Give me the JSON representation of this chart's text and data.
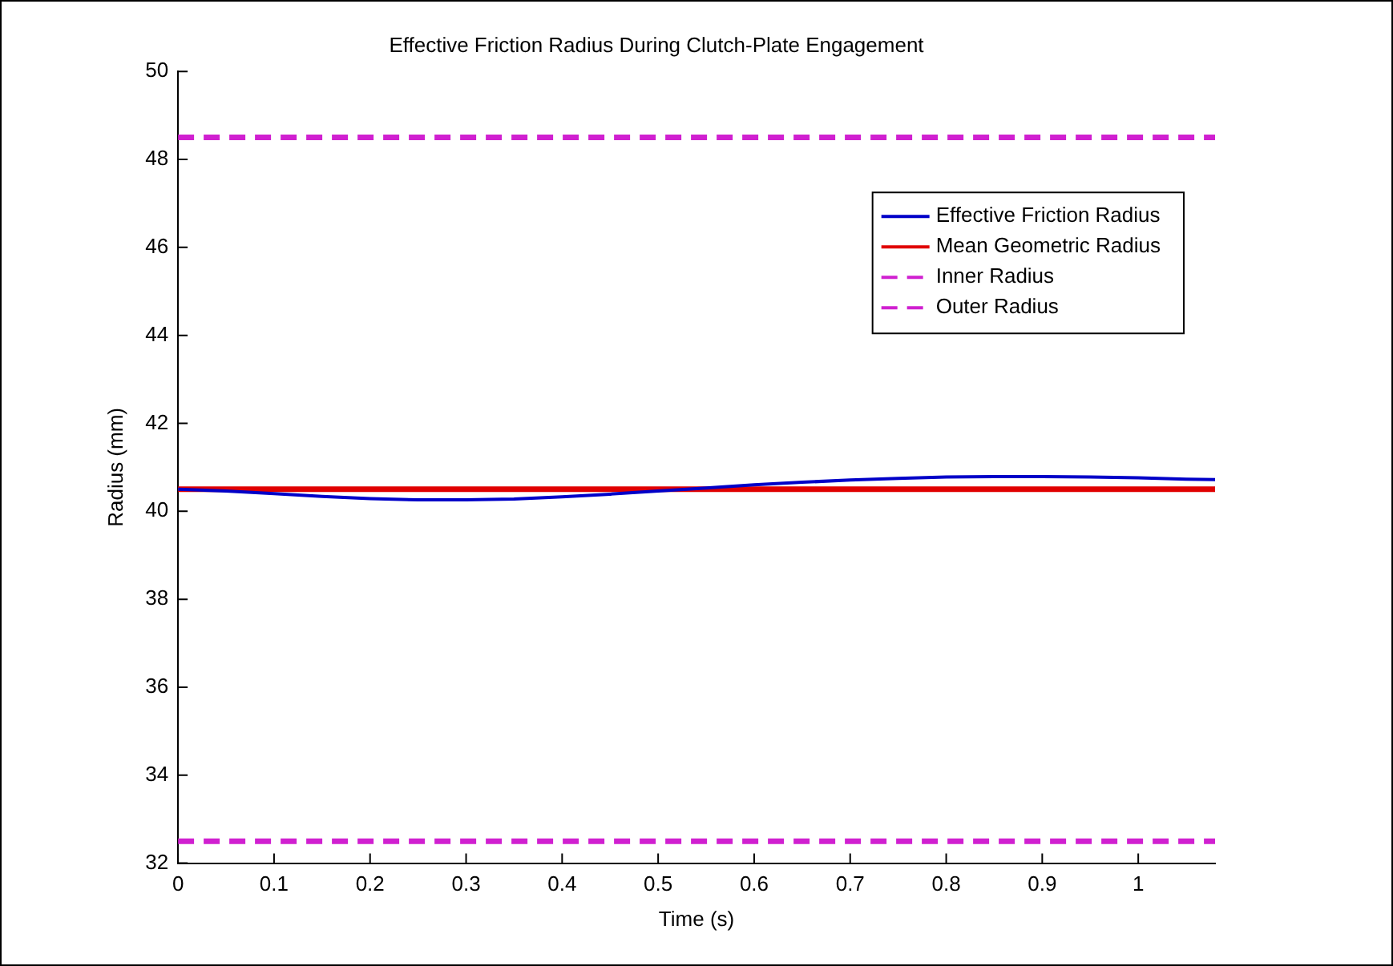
{
  "chart_data": {
    "type": "line",
    "title": "Effective Friction Radius During Clutch-Plate Engagement",
    "xlabel": "Time (s)",
    "ylabel": "Radius (mm)",
    "xlim": [
      0,
      1.08
    ],
    "xticks": [
      0,
      0.1,
      0.2,
      0.3,
      0.4,
      0.5,
      0.6,
      0.7,
      0.8,
      0.9,
      1
    ],
    "ylim": [
      32,
      50
    ],
    "yticks": [
      32,
      34,
      36,
      38,
      40,
      42,
      44,
      46,
      48,
      50
    ],
    "grid": false,
    "legend": "top right",
    "marker": "none",
    "series": [
      {
        "name": "Effective Friction Radius",
        "color": "#0000c8",
        "line_style": "solid",
        "x": [
          0,
          0.05,
          0.1,
          0.15,
          0.2,
          0.25,
          0.3,
          0.35,
          0.4,
          0.45,
          0.5,
          0.55,
          0.6,
          0.65,
          0.7,
          0.75,
          0.8,
          0.85,
          0.9,
          0.95,
          1,
          1.05,
          1.08
        ],
        "values": [
          40.5,
          40.46,
          40.4,
          40.34,
          40.29,
          40.26,
          40.26,
          40.28,
          40.33,
          40.39,
          40.46,
          40.53,
          40.6,
          40.66,
          40.71,
          40.75,
          40.78,
          40.79,
          40.79,
          40.78,
          40.76,
          40.73,
          40.72
        ]
      },
      {
        "name": "Mean Geometric Radius",
        "color": "#e00000",
        "line_style": "solid",
        "x": [
          0,
          1.08
        ],
        "values": [
          40.5,
          40.5
        ]
      },
      {
        "name": "Inner Radius",
        "color": "#d020d0",
        "line_style": "dashed",
        "x": [
          0,
          1.08
        ],
        "values": [
          32.5,
          32.5
        ]
      },
      {
        "name": "Outer Radius",
        "color": "#d020d0",
        "line_style": "dashed",
        "x": [
          0,
          1.08
        ],
        "values": [
          48.5,
          48.5
        ]
      }
    ]
  }
}
